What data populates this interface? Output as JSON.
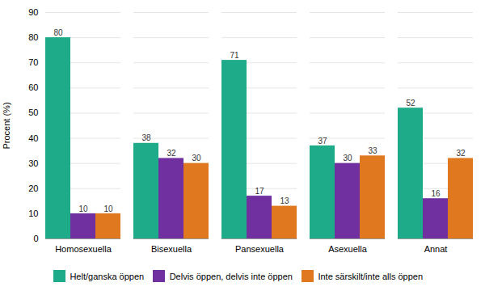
{
  "chart_data": {
    "type": "bar",
    "categories": [
      "Homosexuella",
      "Bisexuella",
      "Pansexuella",
      "Asexuella",
      "Annat"
    ],
    "series": [
      {
        "name": "Helt/ganska öppen",
        "color": "#1dab8a",
        "values": [
          80,
          38,
          71,
          37,
          52
        ]
      },
      {
        "name": "Delvis öppen, delvis inte öppen",
        "color": "#7030a0",
        "values": [
          10,
          32,
          17,
          30,
          16
        ]
      },
      {
        "name": "Inte särskilt/inte alls öppen",
        "color": "#e07820",
        "values": [
          10,
          30,
          13,
          33,
          32
        ]
      }
    ],
    "ylabel": "Procent (%)",
    "ylim": [
      0,
      90
    ],
    "yticks": [
      0,
      10,
      20,
      30,
      40,
      50,
      60,
      70,
      80,
      90
    ],
    "grid": true,
    "data_labels": true,
    "legend": "bottom"
  }
}
